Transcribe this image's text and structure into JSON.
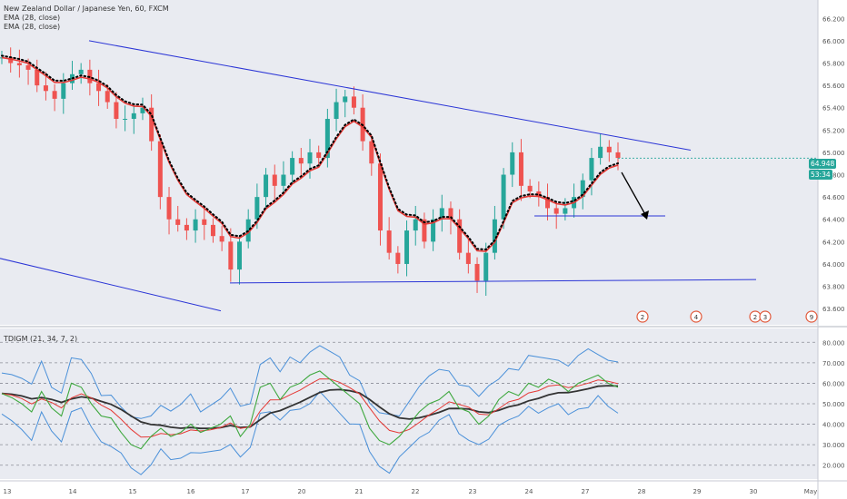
{
  "header": {
    "symbol_line": "New Zealand Dollar / Japanese Yen, 60, FXCM",
    "indicator_1": "EMA (28, close)",
    "indicator_2": "EMA (28, close)"
  },
  "price_panel": {
    "price_tag": "64.948",
    "time_tag": "53:34",
    "y_ticks": [
      "66.200",
      "66.000",
      "65.800",
      "65.600",
      "65.400",
      "65.200",
      "65.000",
      "64.800",
      "64.600",
      "64.400",
      "64.200",
      "64.000",
      "63.800",
      "63.600"
    ]
  },
  "oscillator": {
    "label": "TDIGM (21, 34, 7, 2)",
    "y_ticks": [
      "80.000",
      "70.000",
      "60.000",
      "50.000",
      "40.000",
      "30.000",
      "20.000"
    ]
  },
  "time_axis": {
    "labels": [
      "13",
      "14",
      "15",
      "16",
      "17",
      "20",
      "21",
      "22",
      "23",
      "24",
      "27",
      "28",
      "29",
      "30",
      "May"
    ]
  },
  "event_markers": [
    "2",
    "4",
    "2",
    "3",
    "9"
  ],
  "colors": {
    "background": "#ffffff",
    "price_pane_bg": "#e9ebf1",
    "up_candle": "#26a69a",
    "down_candle": "#ef5350",
    "ema_red": "#e53935",
    "trendline": "#2b35d6",
    "band_blue": "#4a90d9",
    "rsi_green": "#3ea83e",
    "signal_red": "#e53935",
    "midline": "#333333",
    "price_tag_bg": "#26a69a"
  },
  "chart_data": {
    "type": "candlestick",
    "title": "New Zealand Dollar / Japanese Yen, 60, FXCM",
    "price_range": [
      63.52,
      66.3
    ],
    "x_labels": [
      "13",
      "14",
      "15",
      "16",
      "17",
      "20",
      "21",
      "22",
      "23",
      "24",
      "27",
      "28",
      "29",
      "30",
      "May"
    ],
    "price_path": [
      [
        0,
        65.85
      ],
      [
        1,
        65.8
      ],
      [
        2,
        65.78
      ],
      [
        3,
        65.74
      ],
      [
        4,
        65.6
      ],
      [
        5,
        65.55
      ],
      [
        6,
        65.48
      ],
      [
        7,
        65.62
      ],
      [
        8,
        65.7
      ],
      [
        9,
        65.74
      ],
      [
        10,
        65.62
      ],
      [
        11,
        65.55
      ],
      [
        12,
        65.45
      ],
      [
        13,
        65.3
      ],
      [
        14,
        65.3
      ],
      [
        15,
        65.35
      ],
      [
        16,
        65.4
      ],
      [
        17,
        65.1
      ],
      [
        18,
        64.6
      ],
      [
        19,
        64.4
      ],
      [
        20,
        64.35
      ],
      [
        21,
        64.3
      ],
      [
        22,
        64.4
      ],
      [
        23,
        64.35
      ],
      [
        24,
        64.25
      ],
      [
        25,
        64.2
      ],
      [
        26,
        63.95
      ],
      [
        27,
        64.2
      ],
      [
        28,
        64.4
      ],
      [
        29,
        64.6
      ],
      [
        30,
        64.8
      ],
      [
        31,
        64.7
      ],
      [
        32,
        64.8
      ],
      [
        33,
        64.95
      ],
      [
        34,
        64.9
      ],
      [
        35,
        65.0
      ],
      [
        36,
        64.95
      ],
      [
        37,
        65.3
      ],
      [
        38,
        65.45
      ],
      [
        39,
        65.5
      ],
      [
        40,
        65.4
      ],
      [
        41,
        65.1
      ],
      [
        42,
        64.9
      ],
      [
        43,
        64.3
      ],
      [
        44,
        64.1
      ],
      [
        45,
        64.0
      ],
      [
        46,
        64.3
      ],
      [
        47,
        64.4
      ],
      [
        48,
        64.2
      ],
      [
        49,
        64.4
      ],
      [
        50,
        64.5
      ],
      [
        51,
        64.4
      ],
      [
        52,
        64.1
      ],
      [
        53,
        64.0
      ],
      [
        54,
        63.85
      ],
      [
        55,
        64.1
      ],
      [
        56,
        64.4
      ],
      [
        57,
        64.8
      ],
      [
        58,
        65.0
      ],
      [
        59,
        64.7
      ],
      [
        60,
        64.65
      ],
      [
        61,
        64.6
      ],
      [
        62,
        64.5
      ],
      [
        63,
        64.45
      ],
      [
        64,
        64.5
      ],
      [
        65,
        64.6
      ],
      [
        66,
        64.75
      ],
      [
        67,
        64.95
      ],
      [
        68,
        65.05
      ],
      [
        69,
        65.0
      ],
      [
        70,
        64.95
      ]
    ],
    "ema_28": "smoothed EMA of closes (red)",
    "trendlines": [
      {
        "from": [
          14,
          66.0
        ],
        "to": [
          29,
          65.0
        ]
      },
      {
        "from": [
          16.8,
          63.85
        ],
        "to": [
          30,
          63.88
        ]
      },
      {
        "from": [
          27,
          64.42
        ],
        "to": [
          28.5,
          64.42
        ]
      }
    ],
    "oscillator_range": [
      15,
      85
    ],
    "oscillator_levels": [
      80,
      70,
      60,
      50,
      40,
      30,
      20
    ],
    "oscillator_path": [
      [
        0,
        55
      ],
      [
        1,
        53
      ],
      [
        2,
        50
      ],
      [
        3,
        46
      ],
      [
        4,
        56
      ],
      [
        5,
        48
      ],
      [
        6,
        44
      ],
      [
        7,
        60
      ],
      [
        8,
        58
      ],
      [
        9,
        50
      ],
      [
        10,
        44
      ],
      [
        11,
        43
      ],
      [
        12,
        36
      ],
      [
        13,
        30
      ],
      [
        14,
        28
      ],
      [
        15,
        34
      ],
      [
        16,
        38
      ],
      [
        17,
        34
      ],
      [
        18,
        36
      ],
      [
        19,
        40
      ],
      [
        20,
        36
      ],
      [
        21,
        38
      ],
      [
        22,
        40
      ],
      [
        23,
        44
      ],
      [
        24,
        34
      ],
      [
        25,
        40
      ],
      [
        26,
        58
      ],
      [
        27,
        60
      ],
      [
        28,
        52
      ],
      [
        29,
        58
      ],
      [
        30,
        60
      ],
      [
        31,
        64
      ],
      [
        32,
        66
      ],
      [
        33,
        62
      ],
      [
        34,
        58
      ],
      [
        35,
        54
      ],
      [
        36,
        50
      ],
      [
        37,
        38
      ],
      [
        38,
        32
      ],
      [
        39,
        30
      ],
      [
        40,
        34
      ],
      [
        41,
        40
      ],
      [
        42,
        46
      ],
      [
        43,
        50
      ],
      [
        44,
        52
      ],
      [
        45,
        56
      ],
      [
        46,
        48
      ],
      [
        47,
        46
      ],
      [
        48,
        40
      ],
      [
        49,
        44
      ],
      [
        50,
        52
      ],
      [
        51,
        56
      ],
      [
        52,
        54
      ],
      [
        53,
        60
      ],
      [
        54,
        58
      ],
      [
        55,
        62
      ],
      [
        56,
        60
      ],
      [
        57,
        56
      ],
      [
        58,
        60
      ],
      [
        59,
        62
      ],
      [
        60,
        64
      ],
      [
        61,
        60
      ],
      [
        62,
        58
      ]
    ]
  }
}
